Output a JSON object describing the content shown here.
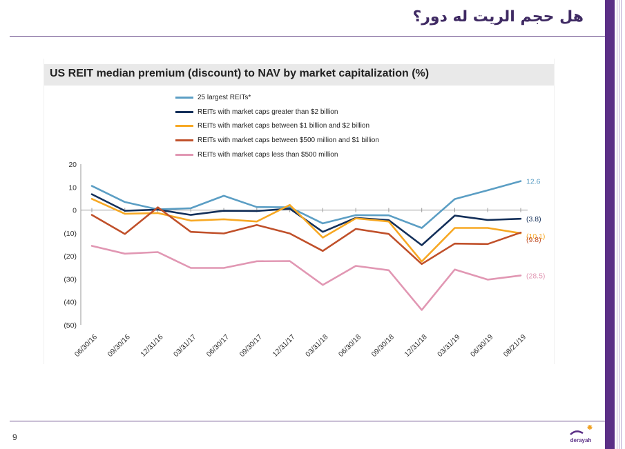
{
  "slide": {
    "title": "هل حجم الريت له دور؟",
    "page_number": "9",
    "logo_text": "derayah"
  },
  "chart_data": {
    "type": "line",
    "title": "US REIT median premium (discount) to NAV by market capitalization (%)",
    "categories": [
      "06/30/16",
      "09/30/16",
      "12/31/16",
      "03/31/17",
      "06/30/17",
      "09/30/17",
      "12/31/17",
      "03/31/18",
      "06/30/18",
      "09/30/18",
      "12/31/18",
      "03/31/19",
      "06/30/19",
      "08/21/19"
    ],
    "ylim": [
      -50,
      20
    ],
    "yticks": [
      20,
      10,
      0,
      -10,
      -20,
      -30,
      -40,
      -50
    ],
    "ytick_labels": [
      "20",
      "10",
      "0",
      "(10)",
      "(20)",
      "(30)",
      "(40)",
      "(50)"
    ],
    "grid": false,
    "series": [
      {
        "name": "25 largest REITs*",
        "color": "#5b9ec4",
        "values": [
          10.5,
          3.5,
          0.3,
          0.8,
          6.2,
          1.3,
          1.2,
          -5.8,
          -2.2,
          -2.3,
          -7.8,
          4.8,
          8.6,
          12.6
        ],
        "end_label": "12.6"
      },
      {
        "name": "REITs with market caps greater than $2 billion",
        "color": "#14305a",
        "values": [
          6.9,
          -0.3,
          0.2,
          -2.1,
          -0.3,
          -0.4,
          0.6,
          -9.5,
          -3.4,
          -4.4,
          -15.3,
          -2.4,
          -4.3,
          -3.8
        ],
        "end_label": "(3.8)"
      },
      {
        "name": "REITs with market caps between $1 billion and $2 billion",
        "color": "#f7a823",
        "values": [
          4.9,
          -1.6,
          -1.3,
          -4.6,
          -4.0,
          -5.0,
          2.2,
          -12.0,
          -3.6,
          -5.0,
          -22.4,
          -7.8,
          -7.8,
          -10.1
        ],
        "end_label": "(10.1)"
      },
      {
        "name": "REITs with market caps between $500 million and $1 billion",
        "color": "#c0502a",
        "values": [
          -2.1,
          -10.4,
          1.2,
          -9.5,
          -10.2,
          -6.5,
          -10.2,
          -17.8,
          -8.2,
          -10.4,
          -23.5,
          -14.6,
          -14.8,
          -9.8
        ],
        "end_label": "(9.8)"
      },
      {
        "name": "REITs with market caps less than $500 million",
        "color": "#e197b3",
        "values": [
          -15.6,
          -19.0,
          -18.3,
          -25.2,
          -25.2,
          -22.3,
          -22.2,
          -32.6,
          -24.3,
          -26.2,
          -43.5,
          -25.9,
          -30.3,
          -28.5
        ],
        "end_label": "(28.5)"
      }
    ]
  }
}
